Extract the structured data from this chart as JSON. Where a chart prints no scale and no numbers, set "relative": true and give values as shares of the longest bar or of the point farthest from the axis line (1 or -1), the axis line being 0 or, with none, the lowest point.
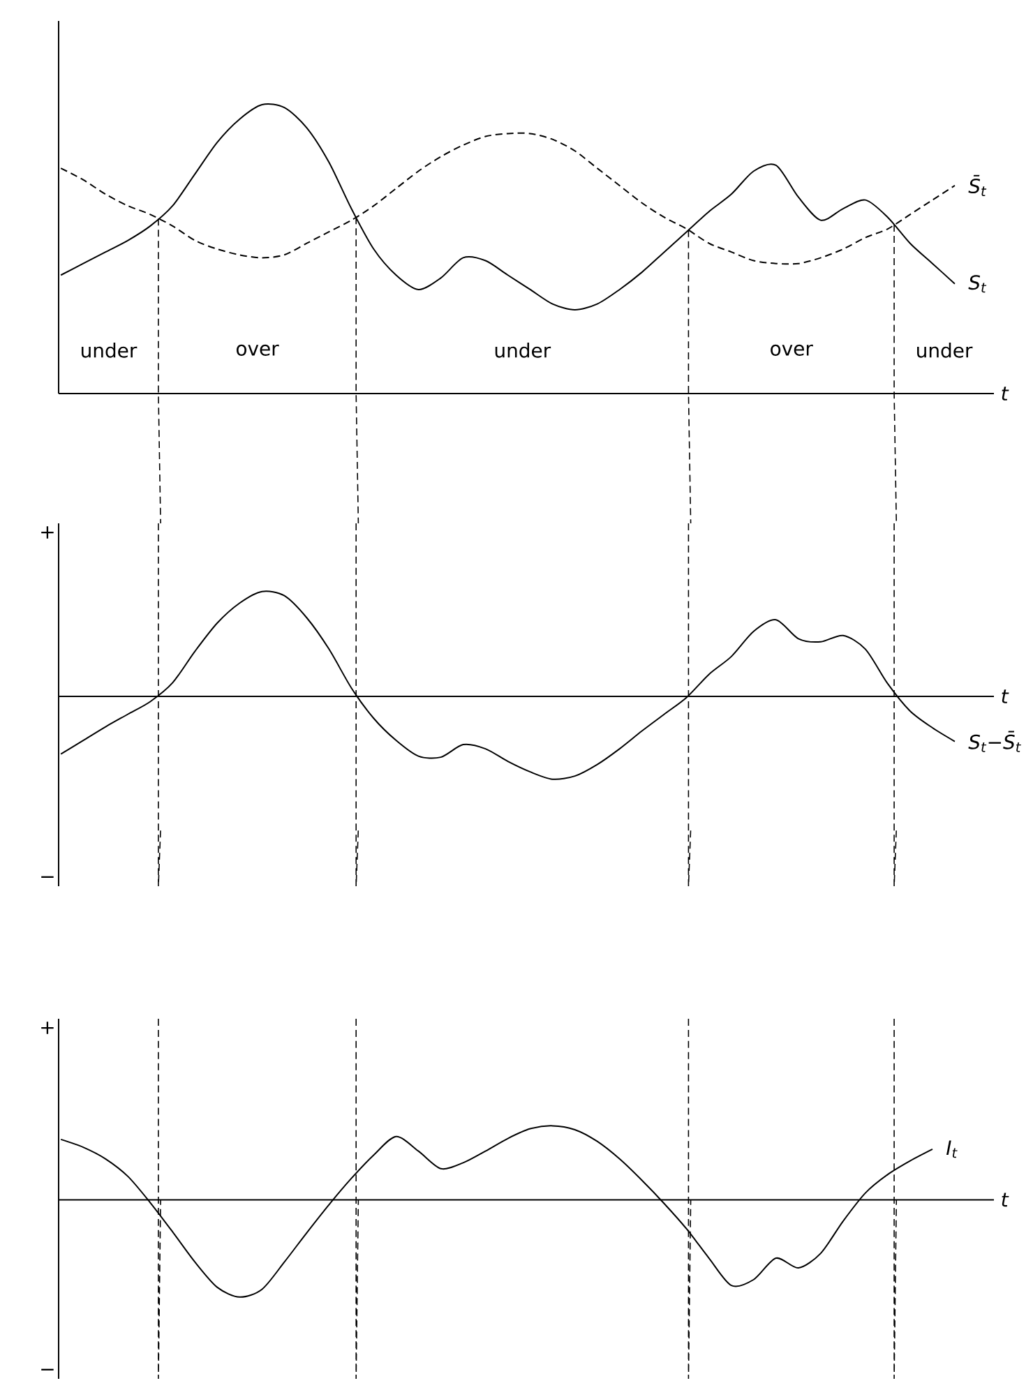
{
  "chart_data": [
    {
      "type": "line",
      "relative": true,
      "xlabel": "t",
      "categories": [
        null,
        null,
        null,
        null,
        null,
        null,
        null,
        null,
        null,
        null,
        null,
        null,
        null,
        null,
        null,
        null,
        null,
        null,
        null,
        null,
        null,
        null,
        null,
        null,
        null,
        null,
        null,
        null,
        null,
        null,
        null,
        null,
        null,
        null,
        null,
        null,
        null,
        null,
        null,
        null,
        null
      ],
      "series": [
        {
          "name": "S̄$_{t}$",
          "color": "#000000",
          "line_style": "dashed",
          "values": [
            0.78,
            0.74,
            0.69,
            0.65,
            0.62,
            0.58,
            0.53,
            0.5,
            0.48,
            0.47,
            0.48,
            0.52,
            0.56,
            0.6,
            0.65,
            0.71,
            0.77,
            0.82,
            0.86,
            0.89,
            0.9,
            0.9,
            0.88,
            0.84,
            0.78,
            0.72,
            0.66,
            0.61,
            0.57,
            0.52,
            0.49,
            0.46,
            0.45,
            0.45,
            0.47,
            0.5,
            0.54,
            0.57,
            0.62,
            0.67,
            0.72
          ]
        },
        {
          "name": "S$_{t}$",
          "color": "#000000",
          "line_style": "solid",
          "values": [
            0.41,
            0.45,
            0.49,
            0.53,
            0.58,
            0.65,
            0.76,
            0.87,
            0.95,
            1.0,
            0.99,
            0.92,
            0.8,
            0.64,
            0.5,
            0.41,
            0.36,
            0.4,
            0.47,
            0.46,
            0.41,
            0.36,
            0.31,
            0.29,
            0.31,
            0.36,
            0.42,
            0.49,
            0.56,
            0.63,
            0.69,
            0.77,
            0.79,
            0.68,
            0.6,
            0.64,
            0.67,
            0.61,
            0.52,
            0.45,
            0.38
          ]
        }
      ],
      "annotations": [
        "under",
        "over",
        "under",
        "over",
        "under"
      ]
    },
    {
      "type": "line",
      "relative": true,
      "xlabel": "t",
      "categories": [
        null,
        null,
        null,
        null,
        null,
        null,
        null,
        null,
        null,
        null,
        null,
        null,
        null,
        null,
        null,
        null,
        null,
        null,
        null,
        null,
        null,
        null,
        null,
        null,
        null,
        null,
        null,
        null,
        null,
        null,
        null,
        null,
        null,
        null,
        null,
        null,
        null,
        null,
        null,
        null,
        null
      ],
      "series": [
        {
          "name": "S$_{t}$−S̄$_{t}$",
          "color": "#000000",
          "line_style": "solid",
          "values": [
            -0.55,
            -0.42,
            -0.29,
            -0.17,
            -0.05,
            0.13,
            0.43,
            0.7,
            0.89,
            1.0,
            0.96,
            0.75,
            0.45,
            0.08,
            -0.21,
            -0.42,
            -0.57,
            -0.58,
            -0.46,
            -0.5,
            -0.62,
            -0.72,
            -0.79,
            -0.76,
            -0.65,
            -0.5,
            -0.33,
            -0.17,
            -0.01,
            0.21,
            0.38,
            0.62,
            0.73,
            0.55,
            0.52,
            0.58,
            0.45,
            0.12,
            -0.14,
            -0.3,
            -0.43
          ]
        }
      ],
      "annotations": [
        "+",
        "−"
      ]
    },
    {
      "type": "line",
      "relative": true,
      "xlabel": "t",
      "categories": [
        null,
        null,
        null,
        null,
        null,
        null,
        null,
        null,
        null,
        null,
        null,
        null,
        null,
        null,
        null,
        null,
        null,
        null,
        null,
        null,
        null,
        null,
        null,
        null,
        null,
        null,
        null,
        null,
        null,
        null,
        null,
        null,
        null,
        null,
        null,
        null,
        null,
        null,
        null,
        null,
        null
      ],
      "series": [
        {
          "name": "I$_{t}$",
          "color": "#000000",
          "line_style": "solid",
          "values": [
            0.62,
            0.54,
            0.42,
            0.24,
            -0.03,
            -0.33,
            -0.64,
            -0.9,
            -1.0,
            -0.92,
            -0.64,
            -0.34,
            -0.05,
            0.22,
            0.46,
            0.65,
            0.5,
            0.32,
            0.38,
            0.5,
            0.63,
            0.73,
            0.76,
            0.72,
            0.6,
            0.42,
            0.2,
            -0.04,
            -0.3,
            -0.6,
            -0.88,
            -0.82,
            -0.6,
            -0.7,
            -0.55,
            -0.22,
            0.07,
            0.26,
            0.4,
            0.52,
            null
          ]
        }
      ],
      "annotations": [
        "+",
        "−"
      ]
    }
  ]
}
